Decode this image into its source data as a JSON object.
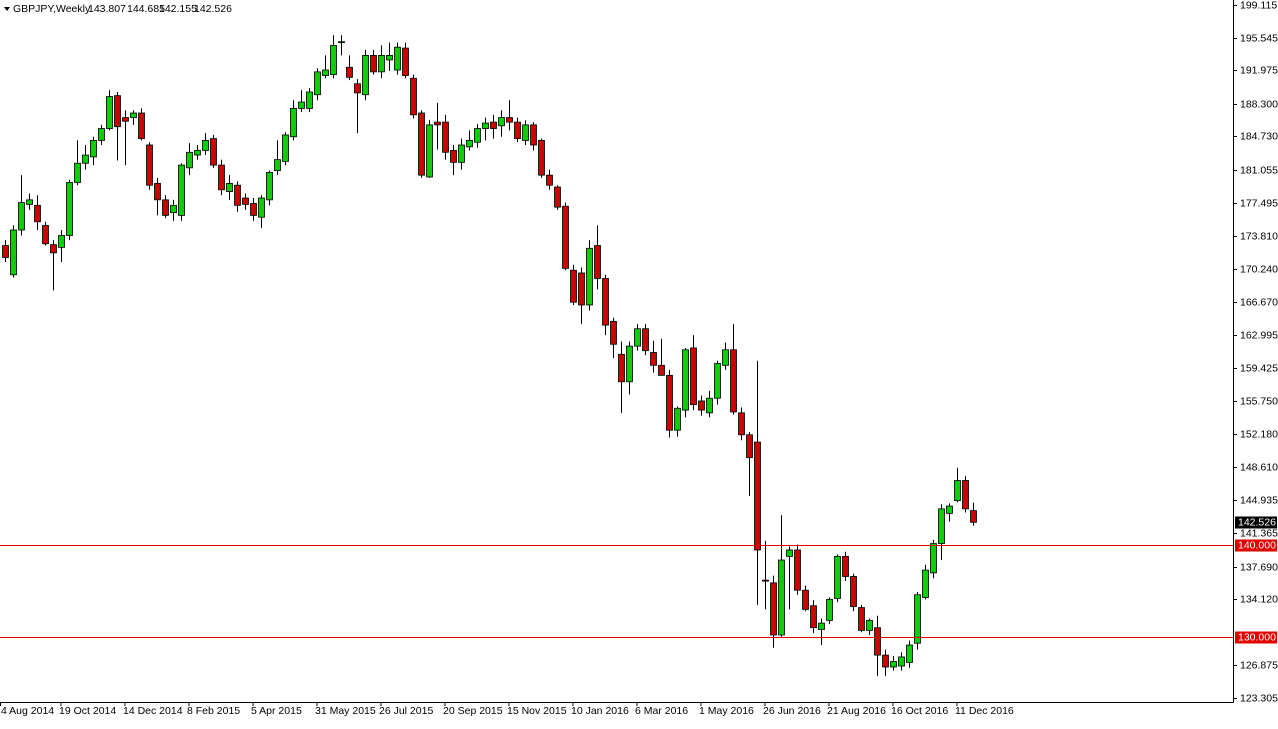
{
  "chart_data": {
    "type": "candlestick",
    "title": "GBPJPY,Weekly",
    "categories": [
      "4 Aug 2014",
      null,
      null,
      null,
      null,
      null,
      null,
      null,
      "19 Oct 2014",
      null,
      null,
      null,
      null,
      null,
      null,
      null,
      "14 Dec 2014",
      null,
      null,
      null,
      null,
      null,
      null,
      null,
      "8 Feb 2015",
      null,
      null,
      null,
      null,
      null,
      null,
      null,
      "5 Apr 2015",
      null,
      null,
      null,
      null,
      null,
      null,
      null,
      "31 May 2015",
      null,
      null,
      null,
      null,
      null,
      null,
      null,
      "26 Jul 2015",
      null,
      null,
      null,
      null,
      null,
      null,
      null,
      "20 Sep 2015",
      null,
      null,
      null,
      null,
      null,
      null,
      null,
      "15 Nov 2015",
      null,
      null,
      null,
      null,
      null,
      null,
      null,
      "10 Jan 2016",
      null,
      null,
      null,
      null,
      null,
      null,
      null,
      "6 Mar 2016",
      null,
      null,
      null,
      null,
      null,
      null,
      null,
      "1 May 2016",
      null,
      null,
      null,
      null,
      null,
      null,
      null,
      "26 Jun 2016",
      null,
      null,
      null,
      null,
      null,
      null,
      null,
      "21 Aug 2016",
      null,
      null,
      null,
      null,
      null,
      null,
      null,
      "16 Oct 2016",
      null,
      null,
      null,
      null,
      null,
      null,
      null,
      "11 Dec 2016",
      null,
      null
    ],
    "open": [
      null,
      172.8,
      169.6,
      174.5,
      177.3,
      177.2,
      175.0,
      172.9,
      172.6,
      173.9,
      179.7,
      181.8,
      182.5,
      184.3,
      185.6,
      189.2,
      186.8,
      186.8,
      187.3,
      183.8,
      179.6,
      177.8,
      176.4,
      176.1,
      181.3,
      182.7,
      183.2,
      184.5,
      181.6,
      178.7,
      179.4,
      178.0,
      177.4,
      175.9,
      177.8,
      181.0,
      182.0,
      184.7,
      187.8,
      187.8,
      189.3,
      191.4,
      191.5,
      195.0,
      192.3,
      190.5,
      189.3,
      193.6,
      191.8,
      193.1,
      192.0,
      194.4,
      191.1,
      187.3,
      180.3,
      186.3,
      186.3,
      183.2,
      181.9,
      183.6,
      184.1,
      185.6,
      186.3,
      185.9,
      186.8,
      186.3,
      184.3,
      186.0,
      184.3,
      180.5,
      179.2,
      177.1,
      170.1,
      169.8,
      166.3,
      172.8,
      169.2,
      164.5,
      160.9,
      157.9,
      161.8,
      163.7,
      161.1,
      159.7,
      158.6,
      152.6,
      154.8,
      161.6,
      155.8,
      154.5,
      156.1,
      159.7,
      161.4,
      154.5,
      152.1,
      151.3,
      136.2,
      135.9,
      130.2,
      138.8,
      139.5,
      135.1,
      133.4,
      130.8,
      131.8,
      134.2,
      138.8,
      136.6,
      133.2,
      130.7,
      131.0,
      128.0,
      126.7,
      126.8,
      127.2,
      129.3,
      134.3,
      137.0,
      140.2,
      143.5,
      144.9,
      147.1,
      143.807
    ],
    "high": [
      null,
      173.4,
      175.0,
      180.5,
      178.5,
      178.3,
      175.4,
      173.4,
      174.5,
      180.0,
      184.3,
      183.8,
      184.7,
      186.0,
      189.8,
      189.6,
      187.6,
      187.6,
      187.8,
      184.1,
      180.2,
      178.3,
      177.8,
      181.8,
      184.0,
      183.8,
      185.1,
      184.9,
      182.2,
      180.5,
      179.8,
      178.5,
      178.0,
      178.3,
      181.0,
      184.3,
      185.2,
      188.7,
      189.8,
      190.0,
      192.2,
      193.6,
      195.8,
      195.8,
      193.6,
      191.0,
      194.2,
      194.2,
      194.7,
      195.0,
      195.0,
      195.0,
      191.5,
      187.6,
      186.5,
      188.4,
      187.1,
      183.8,
      184.5,
      185.4,
      186.1,
      186.8,
      187.1,
      187.6,
      188.7,
      186.8,
      186.5,
      186.3,
      184.5,
      181.1,
      179.4,
      177.5,
      170.7,
      170.4,
      173.4,
      175.0,
      169.6,
      164.9,
      162.3,
      162.3,
      164.2,
      164.2,
      162.4,
      162.6,
      159.2,
      155.2,
      161.6,
      163.0,
      156.4,
      156.9,
      160.2,
      162.2,
      164.2,
      155.1,
      152.4,
      160.2,
      140.5,
      136.7,
      143.3,
      139.9,
      140.1,
      135.6,
      134.0,
      132.0,
      134.3,
      139.0,
      139.3,
      136.9,
      133.5,
      132.0,
      132.3,
      128.6,
      127.9,
      128.3,
      129.6,
      134.9,
      137.9,
      140.6,
      144.5,
      144.6,
      148.5,
      147.6,
      144.685
    ],
    "low": [
      null,
      171.0,
      169.3,
      173.9,
      176.7,
      174.5,
      172.8,
      167.9,
      171.0,
      173.4,
      179.4,
      181.1,
      181.6,
      183.8,
      185.4,
      182.1,
      181.6,
      186.0,
      184.3,
      178.9,
      176.1,
      175.8,
      175.5,
      175.5,
      180.5,
      182.2,
      182.7,
      181.3,
      178.3,
      177.8,
      176.5,
      176.7,
      175.5,
      174.7,
      177.2,
      180.5,
      181.6,
      184.3,
      187.4,
      187.4,
      188.7,
      191.1,
      191.1,
      193.6,
      190.9,
      185.1,
      188.7,
      191.5,
      191.1,
      191.9,
      191.5,
      191.1,
      186.7,
      180.2,
      180.2,
      183.3,
      182.2,
      180.5,
      181.1,
      183.2,
      183.5,
      184.3,
      184.5,
      184.7,
      185.4,
      184.1,
      183.8,
      183.2,
      180.2,
      178.9,
      176.7,
      170.1,
      166.3,
      164.2,
      165.7,
      168.0,
      163.0,
      160.5,
      154.5,
      156.5,
      161.3,
      160.8,
      158.9,
      158.6,
      151.8,
      151.9,
      154.0,
      154.8,
      154.2,
      154.0,
      155.4,
      159.2,
      154.3,
      151.5,
      145.4,
      133.5,
      133.0,
      128.8,
      129.9,
      133.0,
      134.6,
      132.8,
      130.4,
      129.1,
      131.4,
      133.8,
      136.1,
      132.8,
      130.5,
      130.2,
      125.7,
      125.7,
      126.3,
      126.3,
      126.6,
      128.6,
      134.1,
      136.4,
      138.4,
      142.6,
      144.7,
      143.6,
      142.155
    ],
    "close": [
      null,
      171.5,
      174.5,
      177.5,
      177.8,
      175.4,
      173.0,
      172.0,
      173.9,
      179.7,
      181.8,
      182.7,
      184.3,
      185.6,
      189.1,
      185.8,
      186.4,
      187.3,
      184.5,
      179.4,
      177.8,
      176.1,
      177.2,
      181.6,
      183.0,
      183.2,
      184.3,
      181.6,
      178.9,
      179.6,
      177.2,
      177.3,
      176.1,
      178.0,
      180.8,
      182.2,
      184.9,
      187.8,
      188.5,
      189.6,
      191.8,
      192.0,
      194.7,
      195.1,
      191.2,
      189.5,
      193.6,
      191.8,
      193.6,
      193.6,
      194.5,
      191.4,
      187.1,
      180.5,
      186.0,
      186.0,
      183.0,
      181.9,
      183.8,
      184.3,
      185.6,
      186.2,
      185.6,
      186.8,
      186.3,
      184.5,
      186.0,
      183.8,
      180.5,
      179.4,
      177.0,
      170.3,
      166.6,
      166.3,
      172.5,
      169.2,
      164.1,
      162.0,
      157.9,
      161.8,
      163.7,
      161.3,
      159.7,
      158.6,
      152.6,
      155.0,
      161.4,
      155.4,
      154.8,
      156.1,
      159.9,
      161.4,
      154.6,
      152.1,
      149.6,
      139.5,
      136.1,
      130.2,
      138.4,
      139.5,
      135.1,
      133.0,
      131.0,
      131.5,
      134.1,
      138.8,
      136.6,
      133.3,
      130.7,
      131.8,
      128.0,
      126.7,
      127.3,
      127.8,
      129.1,
      134.6,
      137.3,
      140.2,
      144.0,
      144.3,
      147.1,
      144.0,
      142.526
    ],
    "up_color": "#00d000",
    "down_color": "#d00000",
    "wick_color": "#000000",
    "ylim": [
      122.87,
      199.66
    ],
    "yticks": [
      {
        "value": 199.115,
        "label": "199.115"
      },
      {
        "value": 195.545,
        "label": "195.545"
      },
      {
        "value": 191.975,
        "label": "191.975"
      },
      {
        "value": 188.3,
        "label": "188.300"
      },
      {
        "value": 184.73,
        "label": "184.730"
      },
      {
        "value": 181.055,
        "label": "181.055"
      },
      {
        "value": 177.495,
        "label": "177.495"
      },
      {
        "value": 173.81,
        "label": "173.810"
      },
      {
        "value": 170.24,
        "label": "170.240"
      },
      {
        "value": 166.67,
        "label": "166.670"
      },
      {
        "value": 162.995,
        "label": "162.995"
      },
      {
        "value": 159.425,
        "label": "159.425"
      },
      {
        "value": 155.75,
        "label": "155.750"
      },
      {
        "value": 152.18,
        "label": "152.180"
      },
      {
        "value": 148.61,
        "label": "148.610"
      },
      {
        "value": 144.935,
        "label": "144.935"
      },
      {
        "value": 141.365,
        "label": "141.365"
      },
      {
        "value": 137.69,
        "label": "137.690"
      },
      {
        "value": 134.12,
        "label": "134.120"
      },
      {
        "value": 126.875,
        "label": "126.875"
      },
      {
        "value": 123.305,
        "label": "123.305"
      }
    ],
    "hlines": [
      {
        "value": 140,
        "label": "140.000"
      },
      {
        "value": 130,
        "label": "130.000"
      }
    ],
    "hline_color": "#e00000"
  }
}
